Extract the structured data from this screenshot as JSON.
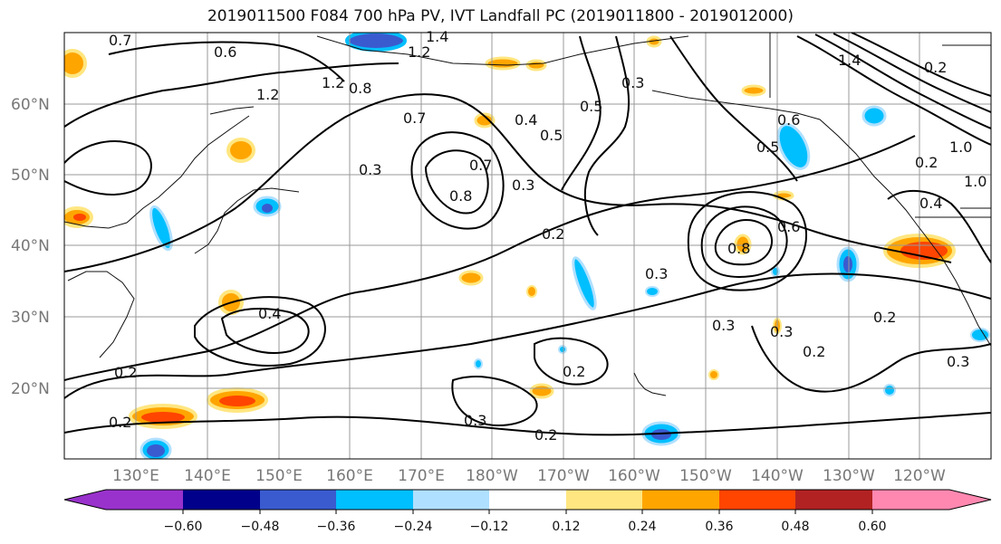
{
  "title": "2019011500 F084 700 hPa PV, IVT Landfall PC (2019011800 - 2019012000)",
  "lat_labels": [
    "60°N",
    "50°N",
    "40°N",
    "30°N",
    "20°N"
  ],
  "lon_labels": [
    "130°E",
    "140°E",
    "150°E",
    "160°E",
    "170°E",
    "180°W",
    "170°W",
    "160°W",
    "150°W",
    "140°W",
    "130°W",
    "120°W"
  ],
  "colorbar": {
    "colors": [
      "#9932cc",
      "#00008b",
      "#3a5bcf",
      "#00bfff",
      "#b0e0ff",
      "#ffffff",
      "#ffe680",
      "#ffa500",
      "#ff4500",
      "#b22222",
      "#ff88b0"
    ],
    "tick_labels": [
      "−0.60",
      "−0.48",
      "−0.36",
      "−0.24",
      "−0.12",
      "0.12",
      "0.24",
      "0.36",
      "0.48",
      "0.60"
    ]
  },
  "contour_labels": [
    "0.7",
    "0.6",
    "1.2",
    "1.4",
    "1.2",
    "0.3",
    "0.8",
    "1.2",
    "0.7",
    "0.4",
    "0.5",
    "0.3",
    "0.8",
    "0.7",
    "0.2",
    "0.3",
    "0.5",
    "0.6",
    "0.5",
    "0.6",
    "0.8",
    "0.3",
    "0.4",
    "0.2",
    "0.2",
    "0.3",
    "0.2",
    "0.2",
    "0.3",
    "0.2",
    "0.3",
    "0.2",
    "0.4",
    "1.0",
    "1.0",
    "0.2",
    "1.4",
    "0.2",
    "0.3"
  ]
}
